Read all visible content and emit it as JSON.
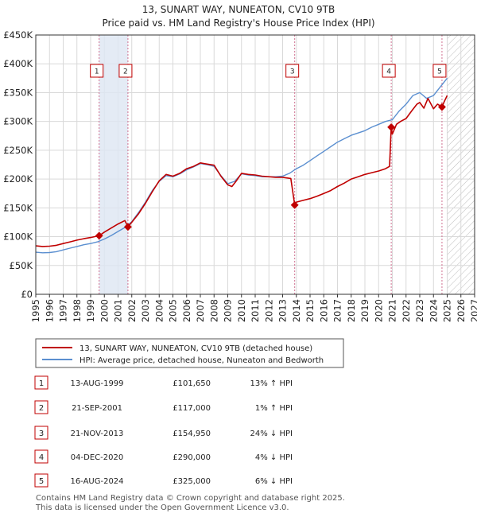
{
  "chart_data": {
    "type": "line",
    "title": "13, SUNART WAY, NUNEATON, CV10 9TB",
    "subtitle": "Price paid vs. HM Land Registry's House Price Index (HPI)",
    "xlim": [
      1995,
      2027
    ],
    "ylim": [
      0,
      450000
    ],
    "x_ticks": [
      "1995",
      "1996",
      "1997",
      "1998",
      "1999",
      "2000",
      "2001",
      "2002",
      "2003",
      "2004",
      "2005",
      "2006",
      "2007",
      "2008",
      "2009",
      "2010",
      "2011",
      "2012",
      "2013",
      "2014",
      "2015",
      "2016",
      "2017",
      "2018",
      "2019",
      "2020",
      "2021",
      "2022",
      "2023",
      "2024",
      "2025",
      "2026",
      "2027"
    ],
    "y_ticks": [
      {
        "value": 0,
        "label": "£0"
      },
      {
        "value": 50000,
        "label": "£50K"
      },
      {
        "value": 100000,
        "label": "£100K"
      },
      {
        "value": 150000,
        "label": "£150K"
      },
      {
        "value": 200000,
        "label": "£200K"
      },
      {
        "value": 250000,
        "label": "£250K"
      },
      {
        "value": 300000,
        "label": "£300K"
      },
      {
        "value": 350000,
        "label": "£350K"
      },
      {
        "value": 400000,
        "label": "£400K"
      },
      {
        "value": 450000,
        "label": "£450K"
      }
    ],
    "grid": true,
    "future_hatch_from": 2025.0,
    "shaded_ranges": [
      {
        "from": 1999.62,
        "to": 2001.72
      }
    ],
    "series": [
      {
        "name": "13, SUNART WAY, NUNEATON, CV10 9TB (detached house)",
        "color": "#c00000",
        "x": [
          1995.0,
          1995.5,
          1996.0,
          1996.5,
          1997.0,
          1997.5,
          1998.0,
          1998.5,
          1999.0,
          1999.62,
          2000.0,
          2000.5,
          2001.0,
          2001.5,
          2001.72,
          2002.0,
          2002.5,
          2003.0,
          2003.5,
          2004.0,
          2004.5,
          2005.0,
          2005.5,
          2006.0,
          2006.5,
          2007.0,
          2007.5,
          2008.0,
          2008.5,
          2009.0,
          2009.3,
          2009.6,
          2010.0,
          2010.5,
          2011.0,
          2011.5,
          2012.0,
          2012.5,
          2013.0,
          2013.3,
          2013.6,
          2013.88,
          2014.0,
          2014.5,
          2015.0,
          2015.5,
          2016.0,
          2016.5,
          2017.0,
          2017.5,
          2018.0,
          2018.5,
          2019.0,
          2019.5,
          2020.0,
          2020.5,
          2020.8,
          2020.92,
          2021.0,
          2021.3,
          2021.6,
          2022.0,
          2022.4,
          2022.8,
          2023.0,
          2023.3,
          2023.6,
          2024.0,
          2024.3,
          2024.62,
          2024.8,
          2025.0
        ],
        "y": [
          84000,
          83000,
          83500,
          85000,
          88000,
          91000,
          94000,
          96500,
          98500,
          101650,
          108000,
          115000,
          122000,
          128000,
          117000,
          125000,
          140000,
          158000,
          178000,
          197000,
          208000,
          205000,
          210000,
          218000,
          222000,
          228000,
          226000,
          224000,
          205000,
          190000,
          187000,
          196000,
          210000,
          208000,
          207000,
          205000,
          204000,
          203000,
          203000,
          202000,
          201000,
          154950,
          160000,
          163000,
          166000,
          170000,
          175000,
          180000,
          187000,
          193000,
          200000,
          204000,
          208000,
          211000,
          214000,
          218000,
          222000,
          290000,
          278000,
          295000,
          300000,
          305000,
          318000,
          330000,
          333000,
          323000,
          340000,
          322000,
          330000,
          325000,
          335000,
          345000
        ]
      },
      {
        "name": "HPI: Average price, detached house, Nuneaton and Bedworth",
        "color": "#5b8fd0",
        "x": [
          1995.0,
          1995.5,
          1996.0,
          1996.5,
          1997.0,
          1997.5,
          1998.0,
          1998.5,
          1999.0,
          1999.5,
          2000.0,
          2000.5,
          2001.0,
          2001.5,
          2002.0,
          2002.5,
          2003.0,
          2003.5,
          2004.0,
          2004.5,
          2005.0,
          2005.5,
          2006.0,
          2006.5,
          2007.0,
          2007.5,
          2008.0,
          2008.5,
          2009.0,
          2009.5,
          2010.0,
          2010.5,
          2011.0,
          2011.5,
          2012.0,
          2012.5,
          2013.0,
          2013.5,
          2014.0,
          2014.5,
          2015.0,
          2015.5,
          2016.0,
          2016.5,
          2017.0,
          2017.5,
          2018.0,
          2018.5,
          2019.0,
          2019.5,
          2020.0,
          2020.5,
          2021.0,
          2021.5,
          2022.0,
          2022.5,
          2023.0,
          2023.5,
          2024.0,
          2024.5,
          2025.0
        ],
        "y": [
          73000,
          72000,
          72500,
          74000,
          77000,
          80000,
          83000,
          86000,
          88000,
          91000,
          96000,
          102000,
          109000,
          116000,
          126000,
          142000,
          160000,
          180000,
          196000,
          206000,
          204000,
          209000,
          216000,
          221000,
          227000,
          225000,
          222000,
          206000,
          192000,
          196000,
          209000,
          207000,
          206000,
          204000,
          204000,
          204000,
          205000,
          210000,
          218000,
          224000,
          232000,
          240000,
          248000,
          256000,
          264000,
          270000,
          276000,
          280000,
          284000,
          290000,
          295000,
          300000,
          303000,
          318000,
          330000,
          345000,
          350000,
          340000,
          345000,
          360000,
          375000
        ]
      }
    ],
    "sales": [
      {
        "n": "1",
        "x": 1999.62,
        "y": 101650,
        "date": "13-AUG-1999",
        "price": "£101,650",
        "hpi": "13% ↑ HPI"
      },
      {
        "n": "2",
        "x": 2001.72,
        "y": 117000,
        "date": "21-SEP-2001",
        "price": "£117,000",
        "hpi": "1% ↑ HPI"
      },
      {
        "n": "3",
        "x": 2013.88,
        "y": 154950,
        "date": "21-NOV-2013",
        "price": "£154,950",
        "hpi": "24% ↓ HPI"
      },
      {
        "n": "4",
        "x": 2020.92,
        "y": 290000,
        "date": "04-DEC-2020",
        "price": "£290,000",
        "hpi": "4% ↓ HPI"
      },
      {
        "n": "5",
        "x": 2024.62,
        "y": 325000,
        "date": "16-AUG-2024",
        "price": "£325,000",
        "hpi": "6% ↓ HPI"
      }
    ]
  },
  "footer": {
    "line1": "Contains HM Land Registry data © Crown copyright and database right 2025.",
    "line2": "This data is licensed under the Open Government Licence v3.0."
  }
}
